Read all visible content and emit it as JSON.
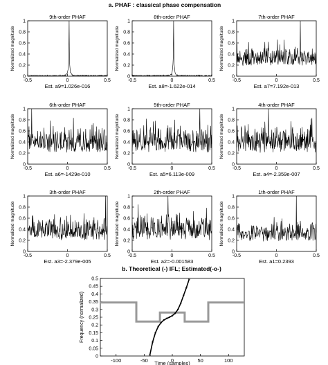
{
  "figure": {
    "title_a": "a. PHAF : classical phase compensation",
    "title_b": "b. Theoretical (-) IFL; Estimated(-o-)"
  },
  "chart_data": [
    {
      "type": "line",
      "title": "9th-order PHAF",
      "xlabel": "Est. a9=1.026e-016",
      "ylabel": "Normalized magnitude",
      "xlim": [
        -0.5,
        0.5
      ],
      "ylim": [
        0,
        1
      ],
      "xticks": [
        -0.5,
        0,
        0.5
      ],
      "yticks": [
        0,
        0.2,
        0.4,
        0.6,
        0.8,
        1
      ],
      "xtick_labels": [
        "-0.5",
        "0",
        "0.5"
      ],
      "ytick_labels": [
        "0",
        "0.2",
        "0.4",
        "0.6",
        "0.8",
        "1"
      ],
      "shape": "spike",
      "peak_x": 0.02,
      "noise_level": 0.02
    },
    {
      "type": "line",
      "title": "8th-order PHAF",
      "xlabel": "Est. a8=-1.622e-014",
      "ylabel": "Normalized magnitude",
      "xlim": [
        -0.5,
        0.5
      ],
      "ylim": [
        0,
        1
      ],
      "xticks": [
        -0.5,
        0,
        0.5
      ],
      "yticks": [
        0,
        0.2,
        0.4,
        0.6,
        0.8,
        1
      ],
      "xtick_labels": [
        "-0.5",
        "0",
        "0.5"
      ],
      "ytick_labels": [
        "0",
        "0.2",
        "0.4",
        "0.6",
        "0.8",
        "1"
      ],
      "shape": "spike",
      "peak_x": 0.02,
      "noise_level": 0.02
    },
    {
      "type": "line",
      "title": "7th-order PHAF",
      "xlabel": "Est. a7=7.192e-013",
      "ylabel": "Normalized magnitude",
      "xlim": [
        -0.5,
        0.5
      ],
      "ylim": [
        0,
        1
      ],
      "xticks": [
        -0.5,
        0,
        0.5
      ],
      "yticks": [
        0,
        0.2,
        0.4,
        0.6,
        0.8,
        1
      ],
      "xtick_labels": [
        "-0.5",
        "0",
        "0.5"
      ],
      "ytick_labels": [
        "0",
        "0.2",
        "0.4",
        "0.6",
        "0.8",
        "1"
      ],
      "shape": "noise",
      "peak_x": 0.3,
      "noise_level": 0.3
    },
    {
      "type": "line",
      "title": "6th-order PHAF",
      "xlabel": "Est. a6=-1429e-010",
      "ylabel": "Normalized magnitude",
      "xlim": [
        -0.5,
        0.5
      ],
      "ylim": [
        0,
        1
      ],
      "xticks": [
        -0.5,
        0,
        0.5
      ],
      "yticks": [
        0,
        0.2,
        0.4,
        0.6,
        0.8,
        1
      ],
      "xtick_labels": [
        "-0.5",
        "0",
        "0.5"
      ],
      "ytick_labels": [
        "0",
        "0.2",
        "0.4",
        "0.6",
        "0.8",
        "1"
      ],
      "shape": "noise",
      "peak_x": -0.45,
      "noise_level": 0.4
    },
    {
      "type": "line",
      "title": "5th-order PHAF",
      "xlabel": "Est. a5=6.113e-009",
      "ylabel": "Normalized magnitude",
      "xlim": [
        -0.5,
        0.5
      ],
      "ylim": [
        0,
        1
      ],
      "xticks": [
        -0.5,
        0,
        0.5
      ],
      "yticks": [
        0,
        0.2,
        0.4,
        0.6,
        0.8,
        1
      ],
      "xtick_labels": [
        "-0.5",
        "0",
        "0.5"
      ],
      "ytick_labels": [
        "0",
        "0.2",
        "0.4",
        "0.6",
        "0.8",
        "1"
      ],
      "shape": "noise",
      "peak_x": 0.35,
      "noise_level": 0.42
    },
    {
      "type": "line",
      "title": "4th-order PHAF",
      "xlabel": "Est. a4=-2.359e-007",
      "ylabel": "Normalized magnitude",
      "xlim": [
        -0.5,
        0.5
      ],
      "ylim": [
        0,
        1
      ],
      "xticks": [
        -0.5,
        0,
        0.5
      ],
      "yticks": [
        0,
        0.2,
        0.4,
        0.6,
        0.8,
        1
      ],
      "xtick_labels": [
        "-0.5",
        "0",
        "0.5"
      ],
      "ytick_labels": [
        "0",
        "0.2",
        "0.4",
        "0.6",
        "0.8",
        "1"
      ],
      "shape": "noise",
      "peak_x": -0.1,
      "noise_level": 0.45
    },
    {
      "type": "line",
      "title": "3th-order PHAF",
      "xlabel": "Est. a3=-2.379e-005",
      "ylabel": "Normalized magnitude",
      "xlim": [
        -0.5,
        0.5
      ],
      "ylim": [
        0,
        1
      ],
      "xticks": [
        -0.5,
        0,
        0.5
      ],
      "yticks": [
        0,
        0.2,
        0.4,
        0.6,
        0.8,
        1
      ],
      "xtick_labels": [
        "-0.5",
        "0",
        "0.5"
      ],
      "ytick_labels": [
        "0",
        "0.2",
        "0.4",
        "0.6",
        "0.8",
        "1"
      ],
      "shape": "noise",
      "peak_x": 0.48,
      "noise_level": 0.4
    },
    {
      "type": "line",
      "title": "2th-order PHAF",
      "xlabel": "Est. a2=-0.001583",
      "ylabel": "Normalized magnitude",
      "xlim": [
        -0.5,
        0.5
      ],
      "ylim": [
        0,
        1
      ],
      "xticks": [
        -0.5,
        0,
        0.5
      ],
      "yticks": [
        0,
        0.2,
        0.4,
        0.6,
        0.8,
        1
      ],
      "xtick_labels": [
        "-0.5",
        "0",
        "0.5"
      ],
      "ytick_labels": [
        "0",
        "0.2",
        "0.4",
        "0.6",
        "0.8",
        "1"
      ],
      "shape": "noise",
      "peak_x": -0.05,
      "noise_level": 0.42
    },
    {
      "type": "line",
      "title": "1th-order PHAF",
      "xlabel": "Est. a1=0.2393",
      "ylabel": "Normalized magnitude",
      "xlim": [
        -0.5,
        0.5
      ],
      "ylim": [
        0,
        1
      ],
      "xticks": [
        -0.5,
        0,
        0.5
      ],
      "yticks": [
        0,
        0.2,
        0.4,
        0.6,
        0.8,
        1
      ],
      "xtick_labels": [
        "-0.5",
        "0",
        "0.5"
      ],
      "ytick_labels": [
        "0",
        "0.2",
        "0.4",
        "0.6",
        "0.8",
        "1"
      ],
      "shape": "noise",
      "peak_x": 0.25,
      "noise_level": 0.3
    },
    {
      "type": "line",
      "title": "b. Theoretical (-) IFL; Estimated(-o-)",
      "xlabel": "Time (samples)",
      "ylabel": "Frequency (normalized)",
      "xlim": [
        -128,
        128
      ],
      "ylim": [
        0,
        0.5
      ],
      "xticks": [
        -100,
        -50,
        0,
        50,
        100
      ],
      "yticks": [
        0,
        0.05,
        0.1,
        0.15,
        0.2,
        0.25,
        0.3,
        0.35,
        0.4,
        0.45,
        0.5
      ],
      "xtick_labels": [
        "-100",
        "-50",
        "0",
        "50",
        "100"
      ],
      "ytick_labels": [
        "0",
        "0.05",
        "0.1",
        "0.15",
        "0.2",
        "0.25",
        "0.3",
        "0.35",
        "0.4",
        "0.45",
        "0.5"
      ],
      "series": [
        {
          "color": "#999999",
          "x": [
            -128,
            -64,
            -64,
            -22,
            -22,
            22,
            22,
            64,
            64,
            128
          ],
          "y": [
            0.345,
            0.345,
            0.222,
            0.222,
            0.28,
            0.28,
            0.222,
            0.222,
            0.345,
            0.345
          ]
        },
        {
          "color": "#000000",
          "x": [
            -40,
            -35,
            -30,
            -25,
            -20,
            -15,
            -10,
            -5,
            0,
            5,
            10,
            15,
            20,
            25,
            30
          ],
          "y": [
            0.005,
            0.09,
            0.15,
            0.19,
            0.215,
            0.232,
            0.242,
            0.25,
            0.26,
            0.275,
            0.3,
            0.34,
            0.39,
            0.44,
            0.495
          ]
        }
      ]
    }
  ]
}
